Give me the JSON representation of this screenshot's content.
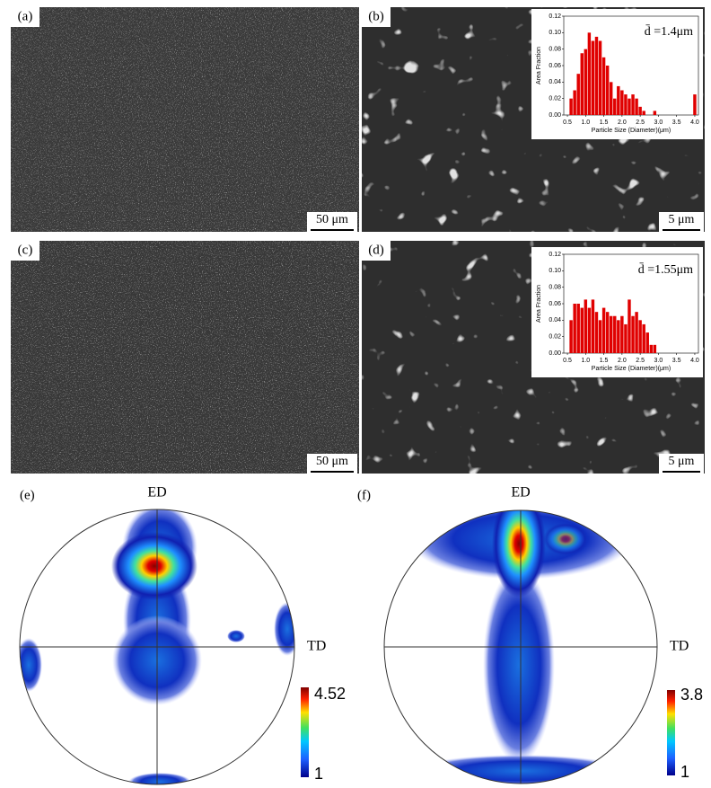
{
  "panels": [
    {
      "label": "(a)",
      "scale_bar": "50 μm"
    },
    {
      "label": "(b)",
      "scale_bar": "5 μm"
    },
    {
      "label": "(c)",
      "scale_bar": "50 μm"
    },
    {
      "label": "(d)",
      "scale_bar": "5 μm"
    }
  ],
  "pole_figures": [
    {
      "label": "(e)",
      "ed": "ED",
      "td": "TD",
      "colorbar_max": 4.52,
      "colorbar_min": 1
    },
    {
      "label": "(f)",
      "ed": "ED",
      "td": "TD",
      "colorbar_max": 3.8,
      "colorbar_min": 1
    }
  ],
  "chart_data": [
    {
      "type": "bar",
      "annotation": "d̄ =1.4μm",
      "x_label": "Particle Size (Diameter)(μm)",
      "y_label": "Area Fraction",
      "color": "#e00000",
      "x": [
        0.6,
        0.7,
        0.8,
        0.9,
        1.0,
        1.1,
        1.2,
        1.3,
        1.4,
        1.5,
        1.6,
        1.7,
        1.8,
        1.9,
        2.0,
        2.1,
        2.2,
        2.3,
        2.4,
        2.5,
        2.6,
        2.9,
        4.0
      ],
      "values": [
        0.02,
        0.03,
        0.05,
        0.075,
        0.08,
        0.1,
        0.09,
        0.095,
        0.09,
        0.07,
        0.06,
        0.04,
        0.02,
        0.035,
        0.03,
        0.025,
        0.02,
        0.025,
        0.02,
        0.01,
        0.005,
        0.005,
        0.025
      ],
      "xlim": [
        0.4,
        4.1
      ],
      "ylim": [
        0,
        0.12
      ],
      "xticks": [
        0.5,
        {
          "value": 1.0,
          "label": "1.0"
        },
        1.5,
        {
          "value": 2.0,
          "label": "2.0"
        },
        2.5,
        {
          "value": 3.0,
          "label": "3.0"
        },
        3.5,
        {
          "value": 4.0,
          "label": "4.0"
        }
      ],
      "yticks": [
        {
          "value": 0,
          "label": "0.00"
        },
        0.02,
        0.04,
        0.06,
        0.08,
        {
          "value": 0.1,
          "label": "0.10"
        },
        0.12
      ]
    },
    {
      "type": "bar",
      "annotation": "d̄ =1.55μm",
      "x_label": "Particle Size (Diameter)(μm)",
      "y_label": "Area Fraction",
      "color": "#e00000",
      "x": [
        0.6,
        0.7,
        0.8,
        0.9,
        1.0,
        1.1,
        1.2,
        1.3,
        1.4,
        1.5,
        1.6,
        1.7,
        1.8,
        1.9,
        2.0,
        2.1,
        2.2,
        2.3,
        2.4,
        2.5,
        2.6,
        2.7,
        2.8,
        2.9
      ],
      "values": [
        0.04,
        0.06,
        0.06,
        0.055,
        0.065,
        0.055,
        0.065,
        0.05,
        0.04,
        0.055,
        0.05,
        0.045,
        0.045,
        0.04,
        0.045,
        0.035,
        0.065,
        0.045,
        0.05,
        0.04,
        0.035,
        0.025,
        0.01,
        0.01
      ],
      "xlim": [
        0.4,
        4.1
      ],
      "ylim": [
        0,
        0.12
      ],
      "xticks": [
        0.5,
        {
          "value": 1.0,
          "label": "1.0"
        },
        1.5,
        {
          "value": 2.0,
          "label": "2.0"
        },
        2.5,
        {
          "value": 3.0,
          "label": "3.0"
        },
        3.5,
        {
          "value": 4.0,
          "label": "4.0"
        }
      ],
      "yticks": [
        {
          "value": 0,
          "label": "0.00"
        },
        0.02,
        0.04,
        0.06,
        0.08,
        {
          "value": 0.1,
          "label": "0.10"
        },
        0.12
      ]
    }
  ]
}
